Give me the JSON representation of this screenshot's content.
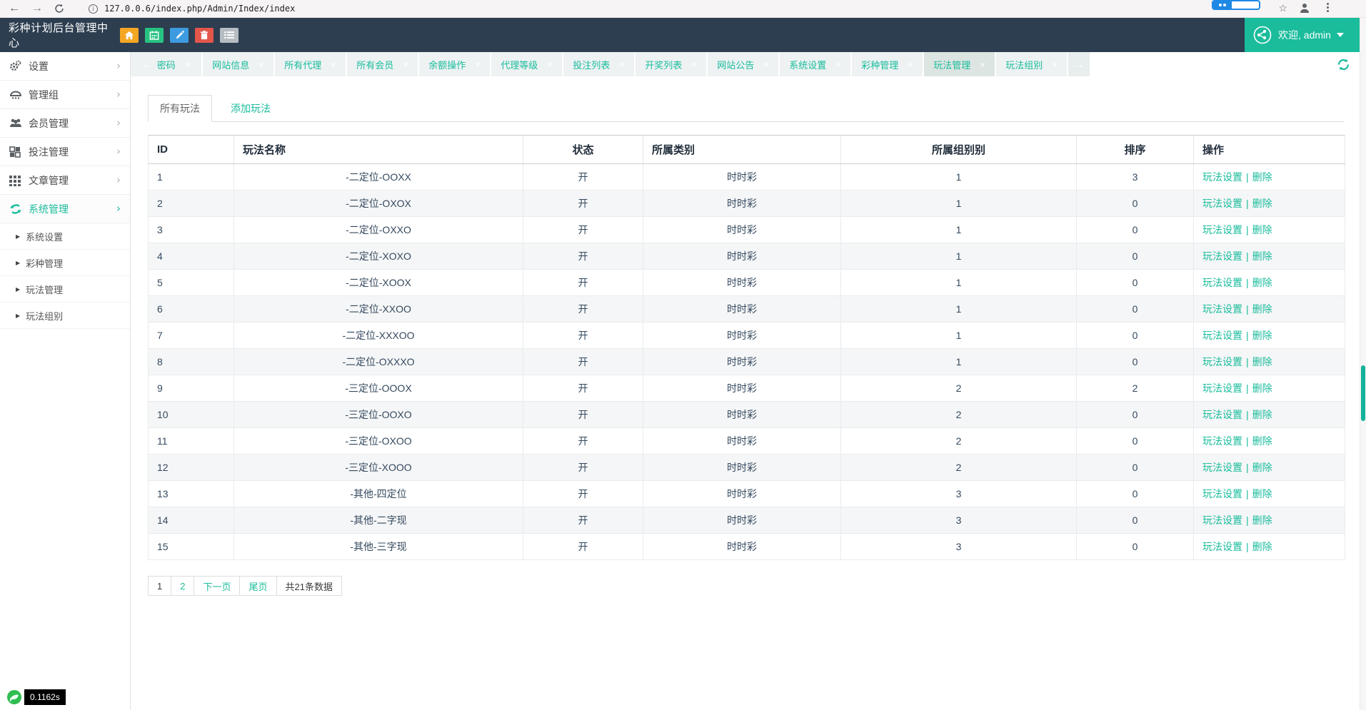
{
  "browser": {
    "url": "127.0.0.6/index.php/Admin/Index/index",
    "back_symbol": "←",
    "forward_symbol": "→",
    "info_symbol": "i",
    "star_symbol": "☆"
  },
  "header": {
    "title": "彩种计划后台管理中心",
    "welcome": "欢迎, admin",
    "quick_icons": [
      {
        "name": "home-icon",
        "color": "#f5a623"
      },
      {
        "name": "calendar-icon",
        "color": "#27c281"
      },
      {
        "name": "edit-icon",
        "color": "#3d9be0"
      },
      {
        "name": "trash-icon",
        "color": "#e3564a"
      },
      {
        "name": "list-icon",
        "color": "#b6bdc2"
      }
    ]
  },
  "tabbar": {
    "tabs": [
      "密码",
      "网站信息",
      "所有代理",
      "所有会员",
      "余额操作",
      "代理等级",
      "投注列表",
      "开奖列表",
      "网站公告",
      "系统设置",
      "彩种管理",
      "玩法管理",
      "玩法组别"
    ],
    "active_index": 11,
    "close_symbol": "×",
    "scroll_left_symbol": "←",
    "scroll_right_symbol": "→"
  },
  "sidebar": {
    "chevron_symbol": "›",
    "sub_marker": "▶",
    "items": [
      {
        "label": "设置",
        "icon": "gears",
        "active": false
      },
      {
        "label": "管理组",
        "icon": "group",
        "active": false
      },
      {
        "label": "会员管理",
        "icon": "users",
        "active": false
      },
      {
        "label": "投注管理",
        "icon": "blocks",
        "active": false
      },
      {
        "label": "文章管理",
        "icon": "grid",
        "active": false
      },
      {
        "label": "系统管理",
        "icon": "recycle",
        "active": true
      }
    ],
    "subitems": [
      "系统设置",
      "彩种管理",
      "玩法管理",
      "玩法组别"
    ]
  },
  "content": {
    "tabs": [
      {
        "label": "所有玩法",
        "active": true
      },
      {
        "label": "添加玩法",
        "active": false
      }
    ],
    "table": {
      "headers": [
        "ID",
        "玩法名称",
        "状态",
        "所属类别",
        "所属组别别",
        "排序",
        "操作"
      ],
      "ops": {
        "settings": "玩法设置",
        "sep": "|",
        "delete": "删除"
      },
      "rows": [
        [
          "1",
          "-二定位-OOXX",
          "开",
          "时时彩",
          "1",
          "3"
        ],
        [
          "2",
          "-二定位-OXOX",
          "开",
          "时时彩",
          "1",
          "0"
        ],
        [
          "3",
          "-二定位-OXXO",
          "开",
          "时时彩",
          "1",
          "0"
        ],
        [
          "4",
          "-二定位-XOXO",
          "开",
          "时时彩",
          "1",
          "0"
        ],
        [
          "5",
          "-二定位-XOOX",
          "开",
          "时时彩",
          "1",
          "0"
        ],
        [
          "6",
          "-二定位-XXOO",
          "开",
          "时时彩",
          "1",
          "0"
        ],
        [
          "7",
          "-二定位-XXXOO",
          "开",
          "时时彩",
          "1",
          "0"
        ],
        [
          "8",
          "-二定位-OXXXO",
          "开",
          "时时彩",
          "1",
          "0"
        ],
        [
          "9",
          "-三定位-OOOX",
          "开",
          "时时彩",
          "2",
          "2"
        ],
        [
          "10",
          "-三定位-OOXO",
          "开",
          "时时彩",
          "2",
          "0"
        ],
        [
          "11",
          "-三定位-OXOO",
          "开",
          "时时彩",
          "2",
          "0"
        ],
        [
          "12",
          "-三定位-XOOO",
          "开",
          "时时彩",
          "2",
          "0"
        ],
        [
          "13",
          "-其他-四定位",
          "开",
          "时时彩",
          "3",
          "0"
        ],
        [
          "14",
          "-其他-二字现",
          "开",
          "时时彩",
          "3",
          "0"
        ],
        [
          "15",
          "-其他-三字现",
          "开",
          "时时彩",
          "3",
          "0"
        ]
      ]
    },
    "pagination": [
      {
        "label": "1",
        "type": "current"
      },
      {
        "label": "2",
        "type": "page"
      },
      {
        "label": "下一页",
        "type": "nav"
      },
      {
        "label": "尾页",
        "type": "nav"
      },
      {
        "label": "共21条数据",
        "type": "info"
      }
    ]
  },
  "footer": {
    "trace_time": "0.1162s"
  },
  "colors": {
    "accent": "#1abc9c",
    "navy": "#2d3e50"
  }
}
